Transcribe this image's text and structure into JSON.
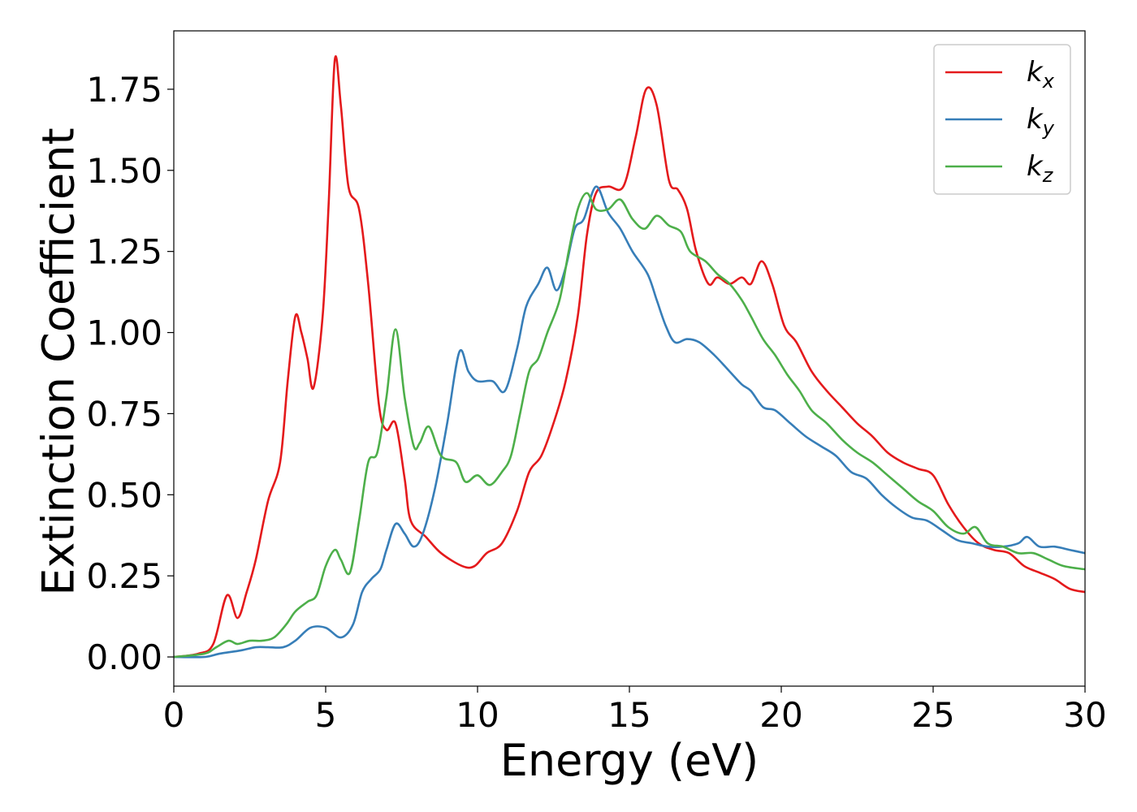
{
  "chart_data": {
    "type": "line",
    "title": "",
    "xlabel": "Energy (eV)",
    "ylabel": "Extinction Coefficient",
    "xlim": [
      0,
      30
    ],
    "ylim": [
      -0.09,
      1.93
    ],
    "xticks": [
      0,
      5,
      10,
      15,
      20,
      25,
      30
    ],
    "xtick_labels": [
      "0",
      "5",
      "10",
      "15",
      "20",
      "25",
      "30"
    ],
    "yticks": [
      0,
      0.25,
      0.5,
      0.75,
      1.0,
      1.25,
      1.5,
      1.75
    ],
    "ytick_labels": [
      "0.00",
      "0.25",
      "0.50",
      "0.75",
      "1.00",
      "1.25",
      "1.50",
      "1.75"
    ],
    "grid": false,
    "legend_position": "top-right",
    "series": [
      {
        "name": "k",
        "subscript": "x",
        "color": "#e41a1c",
        "points": [
          [
            0,
            0
          ],
          [
            0.8,
            0.01
          ],
          [
            1.3,
            0.04
          ],
          [
            1.75,
            0.19
          ],
          [
            2.1,
            0.12
          ],
          [
            2.4,
            0.2
          ],
          [
            2.7,
            0.3
          ],
          [
            3.1,
            0.48
          ],
          [
            3.5,
            0.6
          ],
          [
            3.75,
            0.85
          ],
          [
            4.0,
            1.05
          ],
          [
            4.2,
            1.0
          ],
          [
            4.4,
            0.92
          ],
          [
            4.6,
            0.83
          ],
          [
            4.9,
            1.05
          ],
          [
            5.1,
            1.4
          ],
          [
            5.3,
            1.84
          ],
          [
            5.5,
            1.7
          ],
          [
            5.75,
            1.45
          ],
          [
            6.1,
            1.38
          ],
          [
            6.4,
            1.15
          ],
          [
            6.75,
            0.78
          ],
          [
            7.0,
            0.7
          ],
          [
            7.3,
            0.72
          ],
          [
            7.6,
            0.55
          ],
          [
            7.8,
            0.42
          ],
          [
            8.3,
            0.37
          ],
          [
            8.8,
            0.32
          ],
          [
            9.5,
            0.28
          ],
          [
            9.9,
            0.28
          ],
          [
            10.3,
            0.32
          ],
          [
            10.8,
            0.35
          ],
          [
            11.3,
            0.45
          ],
          [
            11.7,
            0.57
          ],
          [
            12.1,
            0.62
          ],
          [
            12.5,
            0.72
          ],
          [
            12.9,
            0.85
          ],
          [
            13.3,
            1.05
          ],
          [
            13.6,
            1.3
          ],
          [
            13.9,
            1.43
          ],
          [
            14.3,
            1.45
          ],
          [
            14.8,
            1.45
          ],
          [
            15.2,
            1.6
          ],
          [
            15.55,
            1.75
          ],
          [
            15.9,
            1.7
          ],
          [
            16.3,
            1.47
          ],
          [
            16.6,
            1.44
          ],
          [
            16.9,
            1.38
          ],
          [
            17.2,
            1.25
          ],
          [
            17.6,
            1.15
          ],
          [
            17.9,
            1.17
          ],
          [
            18.3,
            1.15
          ],
          [
            18.7,
            1.17
          ],
          [
            19.0,
            1.15
          ],
          [
            19.35,
            1.22
          ],
          [
            19.7,
            1.15
          ],
          [
            20.1,
            1.02
          ],
          [
            20.5,
            0.97
          ],
          [
            21.0,
            0.88
          ],
          [
            21.5,
            0.82
          ],
          [
            22.0,
            0.77
          ],
          [
            22.5,
            0.72
          ],
          [
            23.0,
            0.68
          ],
          [
            23.5,
            0.63
          ],
          [
            24.0,
            0.6
          ],
          [
            24.5,
            0.58
          ],
          [
            25.0,
            0.56
          ],
          [
            25.5,
            0.47
          ],
          [
            26.0,
            0.4
          ],
          [
            26.5,
            0.35
          ],
          [
            27.0,
            0.33
          ],
          [
            27.5,
            0.32
          ],
          [
            28.0,
            0.28
          ],
          [
            28.5,
            0.26
          ],
          [
            29.0,
            0.24
          ],
          [
            29.5,
            0.21
          ],
          [
            30.0,
            0.2
          ]
        ]
      },
      {
        "name": "k",
        "subscript": "y",
        "color": "#377eb8",
        "points": [
          [
            0,
            0
          ],
          [
            1.0,
            0.0
          ],
          [
            1.5,
            0.01
          ],
          [
            2.2,
            0.02
          ],
          [
            2.7,
            0.03
          ],
          [
            3.1,
            0.03
          ],
          [
            3.6,
            0.03
          ],
          [
            4.0,
            0.05
          ],
          [
            4.5,
            0.09
          ],
          [
            5.0,
            0.09
          ],
          [
            5.5,
            0.06
          ],
          [
            5.9,
            0.1
          ],
          [
            6.2,
            0.2
          ],
          [
            6.5,
            0.24
          ],
          [
            6.8,
            0.27
          ],
          [
            7.0,
            0.33
          ],
          [
            7.3,
            0.41
          ],
          [
            7.6,
            0.38
          ],
          [
            7.9,
            0.34
          ],
          [
            8.2,
            0.38
          ],
          [
            8.6,
            0.52
          ],
          [
            9.0,
            0.72
          ],
          [
            9.4,
            0.94
          ],
          [
            9.7,
            0.88
          ],
          [
            10.0,
            0.85
          ],
          [
            10.5,
            0.85
          ],
          [
            10.9,
            0.82
          ],
          [
            11.3,
            0.95
          ],
          [
            11.6,
            1.08
          ],
          [
            12.0,
            1.15
          ],
          [
            12.3,
            1.2
          ],
          [
            12.6,
            1.13
          ],
          [
            12.9,
            1.2
          ],
          [
            13.2,
            1.32
          ],
          [
            13.5,
            1.35
          ],
          [
            13.9,
            1.45
          ],
          [
            14.3,
            1.37
          ],
          [
            14.7,
            1.32
          ],
          [
            15.1,
            1.25
          ],
          [
            15.6,
            1.18
          ],
          [
            15.9,
            1.1
          ],
          [
            16.2,
            1.02
          ],
          [
            16.5,
            0.97
          ],
          [
            16.9,
            0.98
          ],
          [
            17.3,
            0.97
          ],
          [
            17.8,
            0.93
          ],
          [
            18.3,
            0.88
          ],
          [
            18.7,
            0.84
          ],
          [
            19.0,
            0.82
          ],
          [
            19.4,
            0.77
          ],
          [
            19.8,
            0.76
          ],
          [
            20.3,
            0.72
          ],
          [
            20.8,
            0.68
          ],
          [
            21.3,
            0.65
          ],
          [
            21.8,
            0.62
          ],
          [
            22.3,
            0.57
          ],
          [
            22.8,
            0.55
          ],
          [
            23.3,
            0.5
          ],
          [
            23.8,
            0.46
          ],
          [
            24.3,
            0.43
          ],
          [
            24.8,
            0.42
          ],
          [
            25.3,
            0.39
          ],
          [
            25.8,
            0.36
          ],
          [
            26.3,
            0.35
          ],
          [
            26.8,
            0.34
          ],
          [
            27.3,
            0.34
          ],
          [
            27.8,
            0.35
          ],
          [
            28.1,
            0.37
          ],
          [
            28.5,
            0.34
          ],
          [
            29.0,
            0.34
          ],
          [
            29.5,
            0.33
          ],
          [
            30.0,
            0.32
          ]
        ]
      },
      {
        "name": "k",
        "subscript": "z",
        "color": "#4daf4a",
        "points": [
          [
            0,
            0
          ],
          [
            1.0,
            0.01
          ],
          [
            1.4,
            0.03
          ],
          [
            1.8,
            0.05
          ],
          [
            2.1,
            0.04
          ],
          [
            2.5,
            0.05
          ],
          [
            2.9,
            0.05
          ],
          [
            3.3,
            0.06
          ],
          [
            3.7,
            0.1
          ],
          [
            4.0,
            0.14
          ],
          [
            4.4,
            0.17
          ],
          [
            4.7,
            0.19
          ],
          [
            5.0,
            0.28
          ],
          [
            5.3,
            0.33
          ],
          [
            5.5,
            0.3
          ],
          [
            5.8,
            0.26
          ],
          [
            6.1,
            0.42
          ],
          [
            6.4,
            0.6
          ],
          [
            6.7,
            0.63
          ],
          [
            7.0,
            0.8
          ],
          [
            7.3,
            1.01
          ],
          [
            7.6,
            0.8
          ],
          [
            7.9,
            0.65
          ],
          [
            8.1,
            0.66
          ],
          [
            8.4,
            0.71
          ],
          [
            8.8,
            0.62
          ],
          [
            9.3,
            0.6
          ],
          [
            9.6,
            0.54
          ],
          [
            10.0,
            0.56
          ],
          [
            10.4,
            0.53
          ],
          [
            10.8,
            0.57
          ],
          [
            11.1,
            0.62
          ],
          [
            11.4,
            0.75
          ],
          [
            11.7,
            0.88
          ],
          [
            12.0,
            0.92
          ],
          [
            12.3,
            1.0
          ],
          [
            12.7,
            1.1
          ],
          [
            13.0,
            1.25
          ],
          [
            13.3,
            1.38
          ],
          [
            13.6,
            1.43
          ],
          [
            13.9,
            1.38
          ],
          [
            14.3,
            1.38
          ],
          [
            14.7,
            1.41
          ],
          [
            15.1,
            1.35
          ],
          [
            15.5,
            1.32
          ],
          [
            15.9,
            1.36
          ],
          [
            16.3,
            1.33
          ],
          [
            16.7,
            1.31
          ],
          [
            17.0,
            1.25
          ],
          [
            17.5,
            1.22
          ],
          [
            17.9,
            1.18
          ],
          [
            18.3,
            1.15
          ],
          [
            18.7,
            1.1
          ],
          [
            19.0,
            1.05
          ],
          [
            19.4,
            0.98
          ],
          [
            19.8,
            0.93
          ],
          [
            20.2,
            0.87
          ],
          [
            20.6,
            0.82
          ],
          [
            21.0,
            0.76
          ],
          [
            21.5,
            0.72
          ],
          [
            22.0,
            0.67
          ],
          [
            22.5,
            0.63
          ],
          [
            23.0,
            0.6
          ],
          [
            23.5,
            0.56
          ],
          [
            24.0,
            0.52
          ],
          [
            24.5,
            0.48
          ],
          [
            25.0,
            0.45
          ],
          [
            25.5,
            0.4
          ],
          [
            26.0,
            0.38
          ],
          [
            26.4,
            0.4
          ],
          [
            26.8,
            0.35
          ],
          [
            27.3,
            0.34
          ],
          [
            27.8,
            0.32
          ],
          [
            28.3,
            0.32
          ],
          [
            28.8,
            0.3
          ],
          [
            29.3,
            0.28
          ],
          [
            30.0,
            0.27
          ]
        ]
      }
    ]
  }
}
